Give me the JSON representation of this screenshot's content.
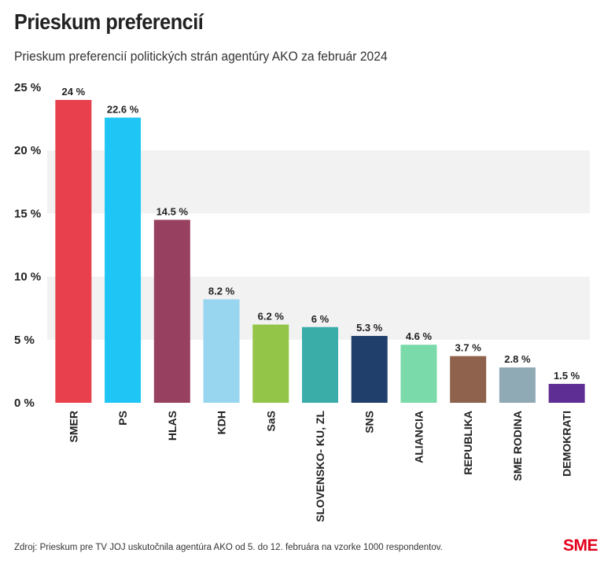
{
  "header": {
    "title": "Prieskum preferencií",
    "subtitle": "Prieskum preferencií politických strán agentúry AKO za február 2024"
  },
  "footer": {
    "source": "Zdroj: Prieskum pre TV JOJ uskutočnila agentúra AKO od 5. do 12. februára na vzorke 1000 respondentov.",
    "logo": "SME"
  },
  "chart_data": {
    "type": "bar",
    "title": "Prieskum preferencií",
    "subtitle": "Prieskum preferencií politických strán agentúry AKO za február 2024",
    "xlabel": "",
    "ylabel": "",
    "ylim": [
      0,
      25
    ],
    "yticks": [
      0,
      5,
      10,
      15,
      20,
      25
    ],
    "ytick_labels": [
      "0 %",
      "5 %",
      "10 %",
      "15 %",
      "20 %",
      "25 %"
    ],
    "grid": "alternating horizontal bands",
    "categories": [
      "SMER",
      "PS",
      "HLAS",
      "KDH",
      "SaS",
      "SLOVENSKO- KU, ZL",
      "SNS",
      "ALIANCIA",
      "REPUBLIKA",
      "SME RODINA",
      "DEMOKRATI"
    ],
    "values": [
      24,
      22.6,
      14.5,
      8.2,
      6.2,
      6,
      5.3,
      4.6,
      3.7,
      2.8,
      1.5
    ],
    "value_labels": [
      "24 %",
      "22.6 %",
      "14.5 %",
      "8.2 %",
      "6.2 %",
      "6 %",
      "5.3 %",
      "4.6 %",
      "3.7 %",
      "2.8 %",
      "1.5 %"
    ],
    "colors": [
      "#e8414d",
      "#1ec5f5",
      "#98405f",
      "#98d6f0",
      "#93c548",
      "#3aada9",
      "#213f6b",
      "#7adaa9",
      "#8e624c",
      "#8fa9b5",
      "#5f2e94"
    ],
    "band_color": "#f2f2f2"
  }
}
